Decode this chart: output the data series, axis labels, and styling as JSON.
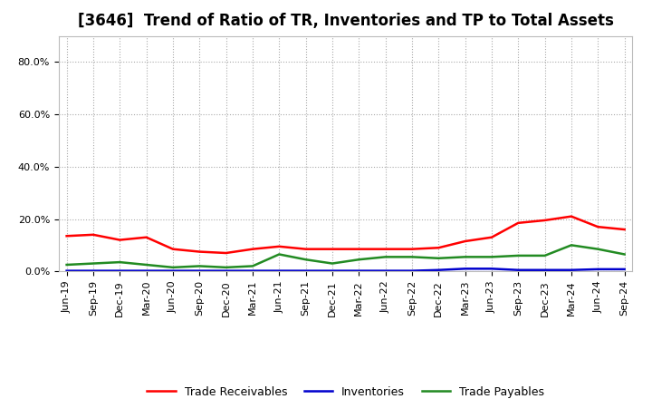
{
  "title": "[3646]  Trend of Ratio of TR, Inventories and TP to Total Assets",
  "x_labels": [
    "Jun-19",
    "Sep-19",
    "Dec-19",
    "Mar-20",
    "Jun-20",
    "Sep-20",
    "Dec-20",
    "Mar-21",
    "Jun-21",
    "Sep-21",
    "Dec-21",
    "Mar-22",
    "Jun-22",
    "Sep-22",
    "Dec-22",
    "Mar-23",
    "Jun-23",
    "Sep-23",
    "Dec-23",
    "Mar-24",
    "Jun-24",
    "Sep-24"
  ],
  "trade_receivables": [
    13.5,
    14.0,
    12.0,
    13.0,
    8.5,
    7.5,
    7.0,
    8.5,
    9.5,
    8.5,
    8.5,
    8.5,
    8.5,
    8.5,
    9.0,
    11.5,
    13.0,
    18.5,
    19.5,
    21.0,
    17.0,
    16.0
  ],
  "inventories": [
    0.2,
    0.2,
    0.2,
    0.2,
    0.2,
    0.2,
    0.2,
    0.2,
    0.2,
    0.2,
    0.2,
    0.2,
    0.2,
    0.2,
    0.5,
    1.0,
    1.0,
    0.5,
    0.5,
    0.5,
    0.8,
    0.8
  ],
  "trade_payables": [
    2.5,
    3.0,
    3.5,
    2.5,
    1.5,
    2.0,
    1.5,
    2.0,
    6.5,
    4.5,
    3.0,
    4.5,
    5.5,
    5.5,
    5.0,
    5.5,
    5.5,
    6.0,
    6.0,
    10.0,
    8.5,
    6.5
  ],
  "tr_color": "#ff0000",
  "inv_color": "#0000cd",
  "tp_color": "#228b22",
  "ylim": [
    0,
    90
  ],
  "yticks": [
    0,
    20,
    40,
    60,
    80
  ],
  "ytick_labels": [
    "0.0%",
    "20.0%",
    "40.0%",
    "60.0%",
    "80.0%"
  ],
  "background_color": "#ffffff",
  "grid_color": "#aaaaaa",
  "legend_labels": [
    "Trade Receivables",
    "Inventories",
    "Trade Payables"
  ],
  "title_fontsize": 12,
  "tick_fontsize": 8,
  "legend_fontsize": 9
}
